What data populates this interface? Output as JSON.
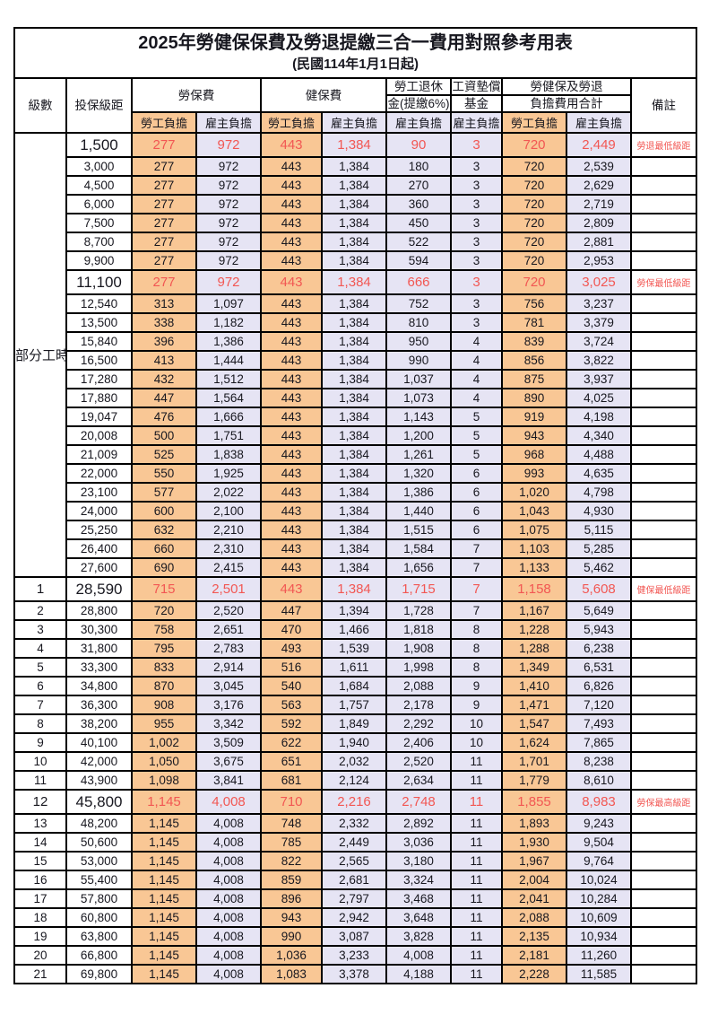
{
  "title": "2025年勞健保保費及勞退提繳三合一費用對照參考用表",
  "subtitle": "(民國114年1月1日起)",
  "colors": {
    "employee_share_bg": "#F9C795",
    "employer_share_bg": "#E6E4F4",
    "highlight_text": "#F25753",
    "border": "#000000"
  },
  "header": {
    "level": "級數",
    "salary_bracket": "投保級距",
    "labor_insurance": "勞保費",
    "health_insurance": "健保費",
    "pension_line1": "勞工退休",
    "pension_line2": "金(提繳6%)",
    "wage_fund_line1": "工資墊償",
    "wage_fund_line2": "基金",
    "total_line1": "勞健保及勞退",
    "total_line2": "負擔費用合計",
    "note": "備註",
    "employee_share": "勞工負擔",
    "employer_share": "雇主負擔"
  },
  "part_time_label": "部分工時",
  "part_time_rowspan": 23,
  "rows": [
    {
      "level": "",
      "salary": "1,500",
      "labor_emp": "277",
      "labor_er": "972",
      "health_emp": "443",
      "health_er": "1,384",
      "pension_er": "90",
      "fund_er": "3",
      "total_emp": "720",
      "total_er": "2,449",
      "note": "勞退最低級距",
      "hl": true
    },
    {
      "level": "",
      "salary": "3,000",
      "labor_emp": "277",
      "labor_er": "972",
      "health_emp": "443",
      "health_er": "1,384",
      "pension_er": "180",
      "fund_er": "3",
      "total_emp": "720",
      "total_er": "2,539",
      "note": "",
      "hl": false
    },
    {
      "level": "",
      "salary": "4,500",
      "labor_emp": "277",
      "labor_er": "972",
      "health_emp": "443",
      "health_er": "1,384",
      "pension_er": "270",
      "fund_er": "3",
      "total_emp": "720",
      "total_er": "2,629",
      "note": "",
      "hl": false
    },
    {
      "level": "",
      "salary": "6,000",
      "labor_emp": "277",
      "labor_er": "972",
      "health_emp": "443",
      "health_er": "1,384",
      "pension_er": "360",
      "fund_er": "3",
      "total_emp": "720",
      "total_er": "2,719",
      "note": "",
      "hl": false
    },
    {
      "level": "",
      "salary": "7,500",
      "labor_emp": "277",
      "labor_er": "972",
      "health_emp": "443",
      "health_er": "1,384",
      "pension_er": "450",
      "fund_er": "3",
      "total_emp": "720",
      "total_er": "2,809",
      "note": "",
      "hl": false
    },
    {
      "level": "",
      "salary": "8,700",
      "labor_emp": "277",
      "labor_er": "972",
      "health_emp": "443",
      "health_er": "1,384",
      "pension_er": "522",
      "fund_er": "3",
      "total_emp": "720",
      "total_er": "2,881",
      "note": "",
      "hl": false
    },
    {
      "level": "",
      "salary": "9,900",
      "labor_emp": "277",
      "labor_er": "972",
      "health_emp": "443",
      "health_er": "1,384",
      "pension_er": "594",
      "fund_er": "3",
      "total_emp": "720",
      "total_er": "2,953",
      "note": "",
      "hl": false
    },
    {
      "level": "",
      "salary": "11,100",
      "labor_emp": "277",
      "labor_er": "972",
      "health_emp": "443",
      "health_er": "1,384",
      "pension_er": "666",
      "fund_er": "3",
      "total_emp": "720",
      "total_er": "3,025",
      "note": "勞保最低級距",
      "hl": true
    },
    {
      "level": "",
      "salary": "12,540",
      "labor_emp": "313",
      "labor_er": "1,097",
      "health_emp": "443",
      "health_er": "1,384",
      "pension_er": "752",
      "fund_er": "3",
      "total_emp": "756",
      "total_er": "3,237",
      "note": "",
      "hl": false
    },
    {
      "level": "",
      "salary": "13,500",
      "labor_emp": "338",
      "labor_er": "1,182",
      "health_emp": "443",
      "health_er": "1,384",
      "pension_er": "810",
      "fund_er": "3",
      "total_emp": "781",
      "total_er": "3,379",
      "note": "",
      "hl": false
    },
    {
      "level": "",
      "salary": "15,840",
      "labor_emp": "396",
      "labor_er": "1,386",
      "health_emp": "443",
      "health_er": "1,384",
      "pension_er": "950",
      "fund_er": "4",
      "total_emp": "839",
      "total_er": "3,724",
      "note": "",
      "hl": false
    },
    {
      "level": "",
      "salary": "16,500",
      "labor_emp": "413",
      "labor_er": "1,444",
      "health_emp": "443",
      "health_er": "1,384",
      "pension_er": "990",
      "fund_er": "4",
      "total_emp": "856",
      "total_er": "3,822",
      "note": "",
      "hl": false
    },
    {
      "level": "",
      "salary": "17,280",
      "labor_emp": "432",
      "labor_er": "1,512",
      "health_emp": "443",
      "health_er": "1,384",
      "pension_er": "1,037",
      "fund_er": "4",
      "total_emp": "875",
      "total_er": "3,937",
      "note": "",
      "hl": false
    },
    {
      "level": "",
      "salary": "17,880",
      "labor_emp": "447",
      "labor_er": "1,564",
      "health_emp": "443",
      "health_er": "1,384",
      "pension_er": "1,073",
      "fund_er": "4",
      "total_emp": "890",
      "total_er": "4,025",
      "note": "",
      "hl": false
    },
    {
      "level": "",
      "salary": "19,047",
      "labor_emp": "476",
      "labor_er": "1,666",
      "health_emp": "443",
      "health_er": "1,384",
      "pension_er": "1,143",
      "fund_er": "5",
      "total_emp": "919",
      "total_er": "4,198",
      "note": "",
      "hl": false
    },
    {
      "level": "",
      "salary": "20,008",
      "labor_emp": "500",
      "labor_er": "1,751",
      "health_emp": "443",
      "health_er": "1,384",
      "pension_er": "1,200",
      "fund_er": "5",
      "total_emp": "943",
      "total_er": "4,340",
      "note": "",
      "hl": false
    },
    {
      "level": "",
      "salary": "21,009",
      "labor_emp": "525",
      "labor_er": "1,838",
      "health_emp": "443",
      "health_er": "1,384",
      "pension_er": "1,261",
      "fund_er": "5",
      "total_emp": "968",
      "total_er": "4,488",
      "note": "",
      "hl": false
    },
    {
      "level": "",
      "salary": "22,000",
      "labor_emp": "550",
      "labor_er": "1,925",
      "health_emp": "443",
      "health_er": "1,384",
      "pension_er": "1,320",
      "fund_er": "6",
      "total_emp": "993",
      "total_er": "4,635",
      "note": "",
      "hl": false
    },
    {
      "level": "",
      "salary": "23,100",
      "labor_emp": "577",
      "labor_er": "2,022",
      "health_emp": "443",
      "health_er": "1,384",
      "pension_er": "1,386",
      "fund_er": "6",
      "total_emp": "1,020",
      "total_er": "4,798",
      "note": "",
      "hl": false
    },
    {
      "level": "",
      "salary": "24,000",
      "labor_emp": "600",
      "labor_er": "2,100",
      "health_emp": "443",
      "health_er": "1,384",
      "pension_er": "1,440",
      "fund_er": "6",
      "total_emp": "1,043",
      "total_er": "4,930",
      "note": "",
      "hl": false
    },
    {
      "level": "",
      "salary": "25,250",
      "labor_emp": "632",
      "labor_er": "2,210",
      "health_emp": "443",
      "health_er": "1,384",
      "pension_er": "1,515",
      "fund_er": "6",
      "total_emp": "1,075",
      "total_er": "5,115",
      "note": "",
      "hl": false
    },
    {
      "level": "",
      "salary": "26,400",
      "labor_emp": "660",
      "labor_er": "2,310",
      "health_emp": "443",
      "health_er": "1,384",
      "pension_er": "1,584",
      "fund_er": "7",
      "total_emp": "1,103",
      "total_er": "5,285",
      "note": "",
      "hl": false
    },
    {
      "level": "",
      "salary": "27,600",
      "labor_emp": "690",
      "labor_er": "2,415",
      "health_emp": "443",
      "health_er": "1,384",
      "pension_er": "1,656",
      "fund_er": "7",
      "total_emp": "1,133",
      "total_er": "5,462",
      "note": "",
      "hl": false
    },
    {
      "level": "1",
      "salary": "28,590",
      "labor_emp": "715",
      "labor_er": "2,501",
      "health_emp": "443",
      "health_er": "1,384",
      "pension_er": "1,715",
      "fund_er": "7",
      "total_emp": "1,158",
      "total_er": "5,608",
      "note": "健保最低級距",
      "hl": true
    },
    {
      "level": "2",
      "salary": "28,800",
      "labor_emp": "720",
      "labor_er": "2,520",
      "health_emp": "447",
      "health_er": "1,394",
      "pension_er": "1,728",
      "fund_er": "7",
      "total_emp": "1,167",
      "total_er": "5,649",
      "note": "",
      "hl": false
    },
    {
      "level": "3",
      "salary": "30,300",
      "labor_emp": "758",
      "labor_er": "2,651",
      "health_emp": "470",
      "health_er": "1,466",
      "pension_er": "1,818",
      "fund_er": "8",
      "total_emp": "1,228",
      "total_er": "5,943",
      "note": "",
      "hl": false
    },
    {
      "level": "4",
      "salary": "31,800",
      "labor_emp": "795",
      "labor_er": "2,783",
      "health_emp": "493",
      "health_er": "1,539",
      "pension_er": "1,908",
      "fund_er": "8",
      "total_emp": "1,288",
      "total_er": "6,238",
      "note": "",
      "hl": false
    },
    {
      "level": "5",
      "salary": "33,300",
      "labor_emp": "833",
      "labor_er": "2,914",
      "health_emp": "516",
      "health_er": "1,611",
      "pension_er": "1,998",
      "fund_er": "8",
      "total_emp": "1,349",
      "total_er": "6,531",
      "note": "",
      "hl": false
    },
    {
      "level": "6",
      "salary": "34,800",
      "labor_emp": "870",
      "labor_er": "3,045",
      "health_emp": "540",
      "health_er": "1,684",
      "pension_er": "2,088",
      "fund_er": "9",
      "total_emp": "1,410",
      "total_er": "6,826",
      "note": "",
      "hl": false
    },
    {
      "level": "7",
      "salary": "36,300",
      "labor_emp": "908",
      "labor_er": "3,176",
      "health_emp": "563",
      "health_er": "1,757",
      "pension_er": "2,178",
      "fund_er": "9",
      "total_emp": "1,471",
      "total_er": "7,120",
      "note": "",
      "hl": false
    },
    {
      "level": "8",
      "salary": "38,200",
      "labor_emp": "955",
      "labor_er": "3,342",
      "health_emp": "592",
      "health_er": "1,849",
      "pension_er": "2,292",
      "fund_er": "10",
      "total_emp": "1,547",
      "total_er": "7,493",
      "note": "",
      "hl": false
    },
    {
      "level": "9",
      "salary": "40,100",
      "labor_emp": "1,002",
      "labor_er": "3,509",
      "health_emp": "622",
      "health_er": "1,940",
      "pension_er": "2,406",
      "fund_er": "10",
      "total_emp": "1,624",
      "total_er": "7,865",
      "note": "",
      "hl": false
    },
    {
      "level": "10",
      "salary": "42,000",
      "labor_emp": "1,050",
      "labor_er": "3,675",
      "health_emp": "651",
      "health_er": "2,032",
      "pension_er": "2,520",
      "fund_er": "11",
      "total_emp": "1,701",
      "total_er": "8,238",
      "note": "",
      "hl": false
    },
    {
      "level": "11",
      "salary": "43,900",
      "labor_emp": "1,098",
      "labor_er": "3,841",
      "health_emp": "681",
      "health_er": "2,124",
      "pension_er": "2,634",
      "fund_er": "11",
      "total_emp": "1,779",
      "total_er": "8,610",
      "note": "",
      "hl": false
    },
    {
      "level": "12",
      "salary": "45,800",
      "labor_emp": "1,145",
      "labor_er": "4,008",
      "health_emp": "710",
      "health_er": "2,216",
      "pension_er": "2,748",
      "fund_er": "11",
      "total_emp": "1,855",
      "total_er": "8,983",
      "note": "勞保最高級距",
      "hl": true
    },
    {
      "level": "13",
      "salary": "48,200",
      "labor_emp": "1,145",
      "labor_er": "4,008",
      "health_emp": "748",
      "health_er": "2,332",
      "pension_er": "2,892",
      "fund_er": "11",
      "total_emp": "1,893",
      "total_er": "9,243",
      "note": "",
      "hl": false
    },
    {
      "level": "14",
      "salary": "50,600",
      "labor_emp": "1,145",
      "labor_er": "4,008",
      "health_emp": "785",
      "health_er": "2,449",
      "pension_er": "3,036",
      "fund_er": "11",
      "total_emp": "1,930",
      "total_er": "9,504",
      "note": "",
      "hl": false
    },
    {
      "level": "15",
      "salary": "53,000",
      "labor_emp": "1,145",
      "labor_er": "4,008",
      "health_emp": "822",
      "health_er": "2,565",
      "pension_er": "3,180",
      "fund_er": "11",
      "total_emp": "1,967",
      "total_er": "9,764",
      "note": "",
      "hl": false
    },
    {
      "level": "16",
      "salary": "55,400",
      "labor_emp": "1,145",
      "labor_er": "4,008",
      "health_emp": "859",
      "health_er": "2,681",
      "pension_er": "3,324",
      "fund_er": "11",
      "total_emp": "2,004",
      "total_er": "10,024",
      "note": "",
      "hl": false
    },
    {
      "level": "17",
      "salary": "57,800",
      "labor_emp": "1,145",
      "labor_er": "4,008",
      "health_emp": "896",
      "health_er": "2,797",
      "pension_er": "3,468",
      "fund_er": "11",
      "total_emp": "2,041",
      "total_er": "10,284",
      "note": "",
      "hl": false
    },
    {
      "level": "18",
      "salary": "60,800",
      "labor_emp": "1,145",
      "labor_er": "4,008",
      "health_emp": "943",
      "health_er": "2,942",
      "pension_er": "3,648",
      "fund_er": "11",
      "total_emp": "2,088",
      "total_er": "10,609",
      "note": "",
      "hl": false
    },
    {
      "level": "19",
      "salary": "63,800",
      "labor_emp": "1,145",
      "labor_er": "4,008",
      "health_emp": "990",
      "health_er": "3,087",
      "pension_er": "3,828",
      "fund_er": "11",
      "total_emp": "2,135",
      "total_er": "10,934",
      "note": "",
      "hl": false
    },
    {
      "level": "20",
      "salary": "66,800",
      "labor_emp": "1,145",
      "labor_er": "4,008",
      "health_emp": "1,036",
      "health_er": "3,233",
      "pension_er": "4,008",
      "fund_er": "11",
      "total_emp": "2,181",
      "total_er": "11,260",
      "note": "",
      "hl": false
    },
    {
      "level": "21",
      "salary": "69,800",
      "labor_emp": "1,145",
      "labor_er": "4,008",
      "health_emp": "1,083",
      "health_er": "3,378",
      "pension_er": "4,188",
      "fund_er": "11",
      "total_emp": "2,228",
      "total_er": "11,585",
      "note": "",
      "hl": false
    }
  ]
}
